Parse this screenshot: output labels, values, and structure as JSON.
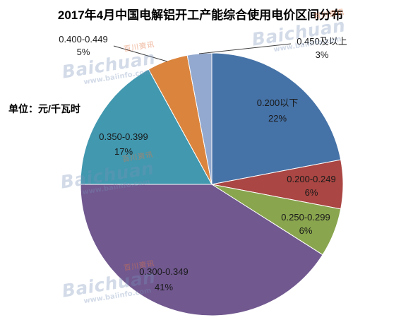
{
  "chart_data": {
    "type": "pie",
    "title": "2017年4月中国电解铝开工产能综合使用电价区间分布",
    "unit_note": "单位：元/千瓦时",
    "categories": [
      "0.200以下",
      "0.200-0.249",
      "0.250-0.299",
      "0.300-0.349",
      "0.350-0.399",
      "0.400-0.449",
      "0.450及以上"
    ],
    "values": [
      22,
      6,
      6,
      41,
      17,
      5,
      3
    ],
    "value_suffix": "%",
    "colors": [
      "#4572A7",
      "#AA4643",
      "#89A54E",
      "#71588F",
      "#4198AF",
      "#DB843D",
      "#93A9CF"
    ],
    "legend": false
  },
  "watermark": {
    "brand": "Baichuan",
    "brand_cn": "百川资讯",
    "url": "www.baiinfo.com"
  }
}
